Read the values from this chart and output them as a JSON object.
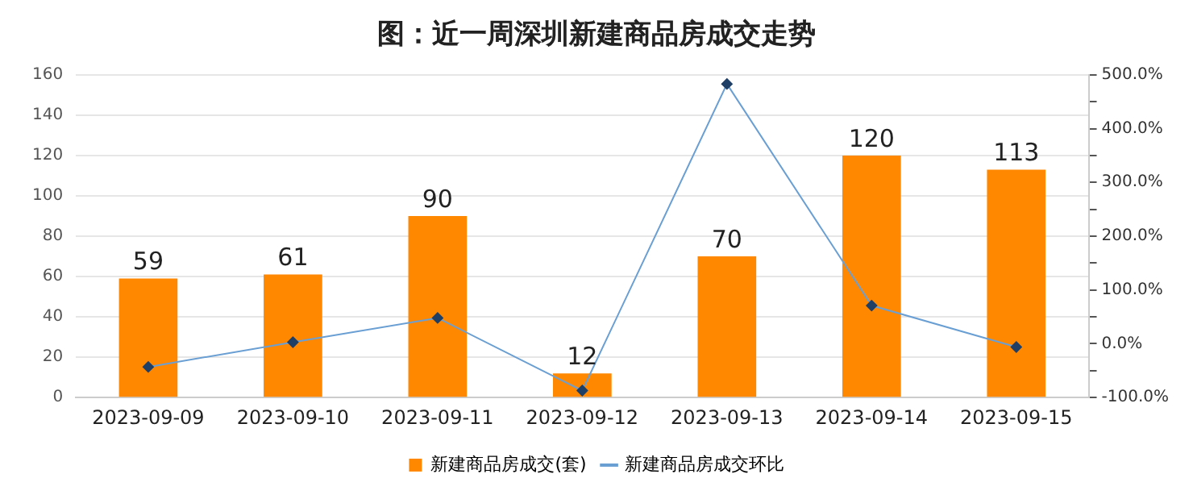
{
  "chart_data": {
    "type": "bar",
    "title": "图：近一周深圳新建商品房成交走势",
    "categories": [
      "2023-09-09",
      "2023-09-10",
      "2023-09-11",
      "2023-09-12",
      "2023-09-13",
      "2023-09-14",
      "2023-09-15"
    ],
    "series": [
      {
        "name": "新建商品房成交(套)",
        "color": "#ff8800",
        "values": [
          59,
          61,
          90,
          12,
          70,
          120,
          113
        ],
        "value_labels": [
          "59",
          "61",
          "90",
          "12",
          "70",
          "120",
          "113"
        ]
      },
      {
        "name": "新建商品房成交环比",
        "type": "line",
        "axis": "y2",
        "color": "#6a9fd4",
        "marker": "diamond",
        "values": [
          -43,
          3,
          48,
          -87,
          483,
          71,
          -6
        ]
      }
    ],
    "ylim": [
      0,
      160
    ],
    "yticks": [
      0,
      20,
      40,
      60,
      80,
      100,
      120,
      140,
      160
    ],
    "y2lim": [
      -100,
      500
    ],
    "y2ticks": [
      {
        "value": -100,
        "label": "-100.0%"
      },
      {
        "value": -50,
        "label": null
      },
      {
        "value": 0,
        "label": "0.0%"
      },
      {
        "value": 50,
        "label": null
      },
      {
        "value": 100,
        "label": "100.0%"
      },
      {
        "value": 150,
        "label": null
      },
      {
        "value": 200,
        "label": "200.0%"
      },
      {
        "value": 250,
        "label": null
      },
      {
        "value": 300,
        "label": "300.0%"
      },
      {
        "value": 350,
        "label": null
      },
      {
        "value": 400,
        "label": "400.0%"
      },
      {
        "value": 450,
        "label": null
      },
      {
        "value": 500,
        "label": "500.0%"
      }
    ],
    "grid": "y",
    "legend": "bottom"
  }
}
